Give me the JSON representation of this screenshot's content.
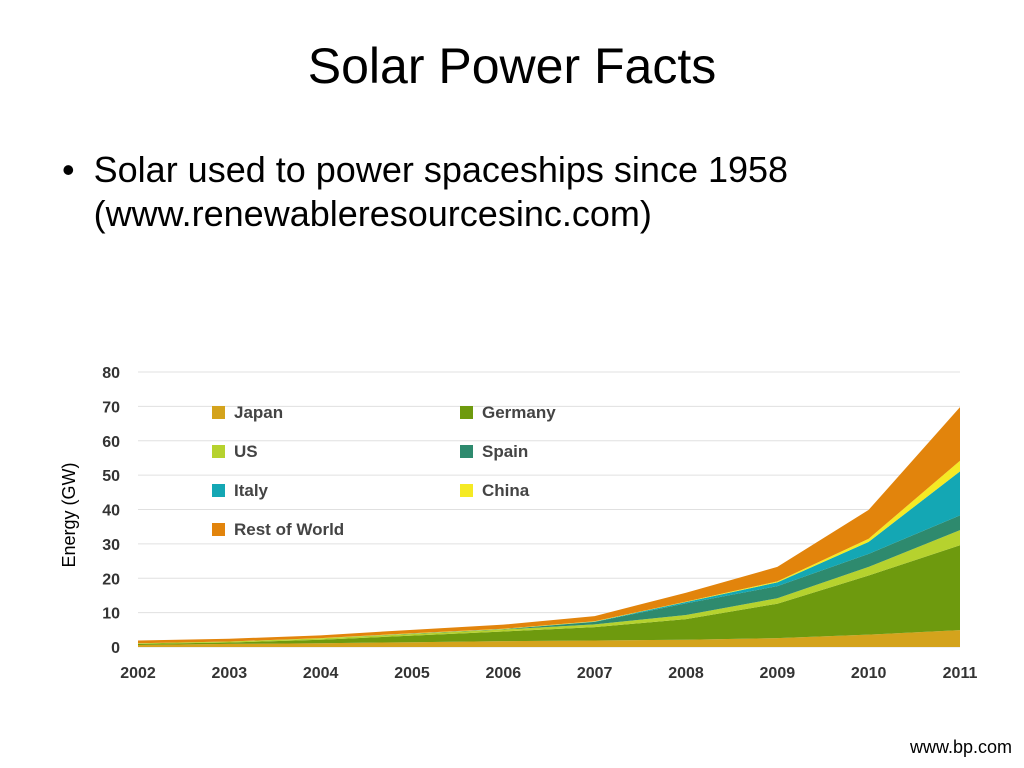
{
  "slide": {
    "title": "Solar Power Facts",
    "bullets": [
      "Solar used to power spaceships since 1958 (www.renewableresourcesinc.com)"
    ],
    "source": "www.bp.com"
  },
  "chart_data": {
    "type": "area",
    "stacked": true,
    "x": [
      "2002",
      "2003",
      "2004",
      "2005",
      "2006",
      "2007",
      "2008",
      "2009",
      "2010",
      "2011"
    ],
    "ylabel": "Energy (GW)",
    "xlabel": "",
    "title": "",
    "ylim": [
      0,
      80
    ],
    "yticks": [
      0,
      10,
      20,
      30,
      40,
      50,
      60,
      70,
      80
    ],
    "grid": true,
    "legend_position": "top-left, inside",
    "series": [
      {
        "name": "Japan",
        "color": "#d4a31c",
        "values": [
          0.6,
          0.9,
          1.1,
          1.4,
          1.7,
          1.9,
          2.1,
          2.6,
          3.6,
          4.9
        ]
      },
      {
        "name": "Germany",
        "color": "#6e9a0e",
        "values": [
          0.3,
          0.4,
          1.0,
          1.9,
          2.8,
          3.9,
          6.0,
          10.0,
          17.2,
          24.7
        ]
      },
      {
        "name": "US",
        "color": "#b6d22e",
        "values": [
          0.2,
          0.3,
          0.4,
          0.5,
          0.6,
          0.8,
          1.2,
          1.6,
          2.5,
          4.4
        ]
      },
      {
        "name": "Spain",
        "color": "#2e8a6e",
        "values": [
          0.0,
          0.0,
          0.0,
          0.1,
          0.1,
          0.7,
          3.4,
          3.5,
          3.8,
          4.3
        ]
      },
      {
        "name": "Italy",
        "color": "#14a7b4",
        "values": [
          0.0,
          0.0,
          0.0,
          0.0,
          0.0,
          0.1,
          0.4,
          1.1,
          3.5,
          12.8
        ]
      },
      {
        "name": "China",
        "color": "#f5ea24",
        "values": [
          0.0,
          0.0,
          0.1,
          0.1,
          0.1,
          0.1,
          0.1,
          0.3,
          0.9,
          3.1
        ]
      },
      {
        "name": "Rest of World",
        "color": "#e2840c",
        "values": [
          0.8,
          0.8,
          0.8,
          1.0,
          1.2,
          1.5,
          2.6,
          4.2,
          8.4,
          15.6
        ]
      }
    ]
  }
}
